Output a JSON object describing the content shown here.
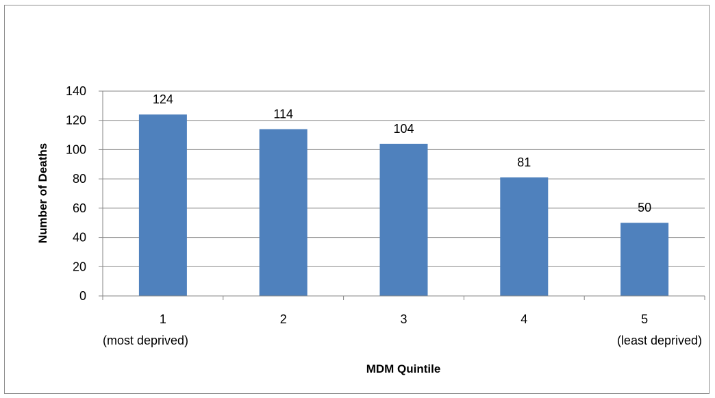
{
  "chart_data": {
    "type": "bar",
    "title": "",
    "xlabel": "MDM Quintile",
    "ylabel": "Number of Deaths",
    "categories": [
      "1",
      "2",
      "3",
      "4",
      "5"
    ],
    "category_sublabels": [
      "(most deprived)",
      "",
      "",
      "",
      "(least deprived)"
    ],
    "values": [
      124,
      114,
      104,
      81,
      50
    ],
    "data_labels": [
      "124",
      "114",
      "104",
      "81",
      "50"
    ],
    "ylim": [
      0,
      140
    ],
    "yticks": [
      0,
      20,
      40,
      60,
      80,
      100,
      120,
      140
    ],
    "grid": true,
    "legend": "none",
    "bar_color": "#4F81BD"
  }
}
